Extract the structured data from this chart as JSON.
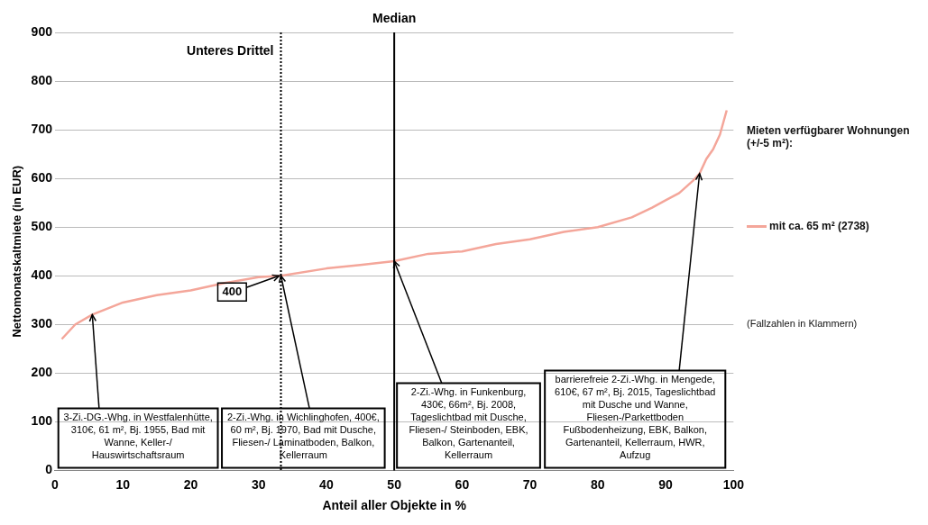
{
  "chart_data": {
    "type": "line",
    "xlabel": "Anteil aller Objekte in %",
    "ylabel": "Nettomonatskaltmiete (in EUR)",
    "legend_title": "Mieten verfügbarer Wohnungen (+/-5 m²):",
    "legend": "right",
    "grid": "y",
    "marker": "none",
    "line_style": "solid",
    "xlim": [
      0,
      100
    ],
    "xticks": [
      0,
      10,
      20,
      30,
      40,
      50,
      60,
      70,
      80,
      90,
      100
    ],
    "ylim": [
      0,
      900
    ],
    "yticks": [
      0,
      100,
      200,
      300,
      400,
      500,
      600,
      700,
      800,
      900
    ],
    "series": [
      {
        "name": "mit ca. 65 m² (2738)",
        "color": "#f4a69a",
        "x": [
          1,
          3,
          5.5,
          10,
          15,
          20,
          25,
          30,
          33.3,
          40,
          45,
          50,
          55,
          60,
          65,
          70,
          75,
          80,
          85,
          88,
          90,
          92,
          94,
          95,
          96,
          97,
          98,
          99
        ],
        "values": [
          270,
          300,
          320,
          345,
          360,
          370,
          385,
          397,
          400,
          415,
          422,
          430,
          445,
          450,
          465,
          475,
          490,
          500,
          520,
          540,
          555,
          570,
          595,
          610,
          640,
          660,
          690,
          740
        ]
      }
    ],
    "ref_lines": [
      {
        "axis": "x",
        "value": 33.3,
        "label": "Unteres Drittel",
        "line_style": "dotted",
        "color": "#000000"
      },
      {
        "axis": "x",
        "value": 50,
        "label": "Median",
        "line_style": "solid",
        "color": "#000000"
      }
    ],
    "annotations": [
      {
        "text": "3-Zi.-DG.-Whg. in Westfalenhütte, 310€, 61 m², Bj. 1955, Bad mit Wanne, Keller-/ Hauswirtschaftsraum",
        "x": 5.5,
        "y": 320
      },
      {
        "text": "2-Zi.-Whg. in Wichlinghofen, 400€, 60 m², Bj. 1970, Bad mit Dusche, Fliesen-/ Laminatboden, Balkon, Kellerraum",
        "x": 33.3,
        "y": 400
      },
      {
        "text": "2-Zi.-Whg. in Funkenburg, 430€, 66m², Bj. 2008, Tageslichtbad mit Dusche, Fliesen-/ Steinboden, EBK, Balkon, Gartenanteil, Kellerraum",
        "x": 50,
        "y": 430
      },
      {
        "text": "barrierefreie 2-Zi.-Whg. in Mengede, 610€, 67 m², Bj. 2015, Tageslichtbad mit Dusche und Wanne, Fliesen-/Parkettboden Fußbodenheizung, EBK, Balkon, Gartenanteil, Kellerraum, HWR, Aufzug",
        "x": 95,
        "y": 610
      },
      {
        "text": "400",
        "x": 33.3,
        "y": 400
      },
      "(Fallzahlen in Klammern)"
    ]
  }
}
